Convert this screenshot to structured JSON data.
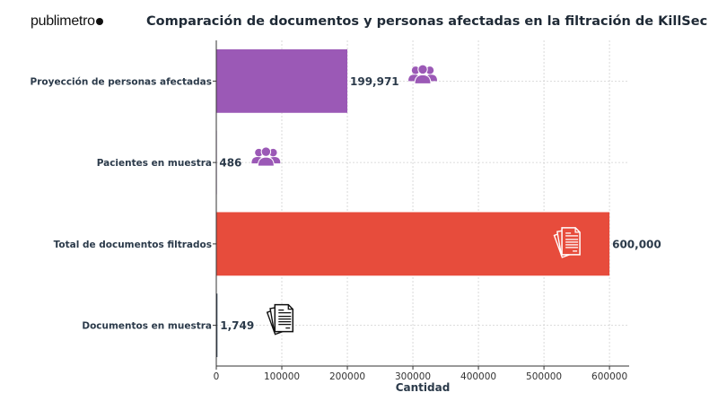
{
  "brand": {
    "logo_text": "publimetro"
  },
  "chart_data": {
    "type": "bar",
    "orientation": "horizontal",
    "title": "Comparación de documentos y personas afectadas en la filtración de KillSec",
    "xlabel": "Cantidad",
    "ylabel": "",
    "xlim": [
      0,
      630000
    ],
    "xticks": [
      0,
      100000,
      200000,
      300000,
      400000,
      500000,
      600000
    ],
    "xtick_labels": [
      "0",
      "100000",
      "200000",
      "300000",
      "400000",
      "500000",
      "600000"
    ],
    "grid": true,
    "categories": [
      "Proyección de personas afectadas",
      "Pacientes en muestra",
      "Total de documentos filtrados",
      "Documentos en muestra"
    ],
    "values": [
      199971,
      486,
      600000,
      1749
    ],
    "value_labels": [
      "199,971",
      "486",
      "600,000",
      "1,749"
    ],
    "colors": [
      "#9b59b6",
      "#9b59b6",
      "#e74c3c",
      "#2c3e50"
    ],
    "icons": [
      "people-group-icon",
      "people-group-icon",
      "documents-icon",
      "documents-icon"
    ]
  }
}
